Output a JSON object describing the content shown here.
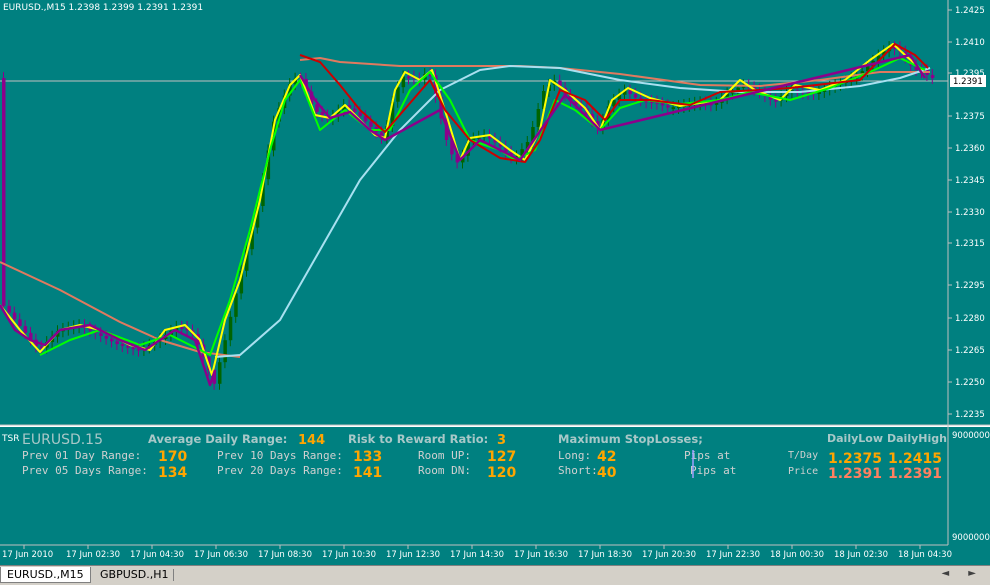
{
  "window": {
    "symbol_header": "EURUSD.,M15  1.2398 1.2399 1.2391 1.2391"
  },
  "colors": {
    "background": "#008080",
    "bull_candle": "#006400",
    "bear_candle": "#8b008b",
    "ma_yellow": "#ffff00",
    "ma_green": "#00ff00",
    "ma_red": "#cc0000",
    "ma_salmon": "#e07a5f",
    "ma_lightblue": "#a8e0f0",
    "value_orange": "#ffa500",
    "value_salmon": "#ff8060",
    "label_gray": "#c0c0c0"
  },
  "price_axis": {
    "labels": [
      "1.2425",
      "1.2410",
      "1.2395",
      "1.2391",
      "1.2375",
      "1.2360",
      "1.2345",
      "1.2330",
      "1.2315",
      "1.2295",
      "1.2280",
      "1.2265",
      "1.2250",
      "1.2235"
    ],
    "current_price": "1.2391"
  },
  "indicator_axis": {
    "top": "9000000",
    "bottom": "9000000"
  },
  "time_axis": {
    "labels": [
      "17 Jun 2010",
      "17 Jun 02:30",
      "17 Jun 04:30",
      "17 Jun 06:30",
      "17 Jun 08:30",
      "17 Jun 10:30",
      "17 Jun 12:30",
      "17 Jun 14:30",
      "17 Jun 16:30",
      "17 Jun 18:30",
      "17 Jun 20:30",
      "17 Jun 22:30",
      "18 Jun 00:30",
      "18 Jun 02:30",
      "18 Jun 04:30"
    ]
  },
  "panel": {
    "tag": "TSR",
    "symbol": "EURUSD.15",
    "adr_label": "Average Daily Range:",
    "adr_value": "144",
    "rr_label": "Risk to Reward Ratio:",
    "rr_value": "3",
    "msl_label": "Maximum StopLosses;",
    "dailylow_label": "DailyLow",
    "dailyhigh_label": "DailyHigh",
    "prev01_label": "Prev 01 Day Range:",
    "prev01_value": "170",
    "prev05_label": "Prev 05 Days Range:",
    "prev05_value": "134",
    "prev10_label": "Prev 10 Days Range:",
    "prev10_value": "133",
    "prev20_label": "Prev 20 Days Range:",
    "prev20_value": "141",
    "roomup_label": "Room UP:",
    "roomup_value": "127",
    "roomdn_label": "Room DN:",
    "roomdn_value": "120",
    "long_label": "Long:",
    "long_value": "42",
    "short_label": "Short:",
    "short_value": "40",
    "pips_at_1": "Pips at",
    "pips_at_2": "Pips at",
    "tday_label": "T/Day",
    "tday_low": "1.2375",
    "tday_high": "1.2415",
    "price_label": "Price",
    "price_low": "1.2391",
    "price_high": "1.2391"
  },
  "tabs": [
    {
      "label": "EURUSD.,M15",
      "active": true
    },
    {
      "label": "GBPUSD.,H1",
      "active": false
    }
  ],
  "tab_arrows": "◄ ►",
  "chart_data": {
    "type": "line",
    "note_series": [
      {
        "name": "",
        "x": [
          "17 Jun 2010",
          "17 Jun 02:30",
          "17 Jun 04:30",
          "17 Jun 06:30",
          "17 Jun 08:30",
          "17 Jun 10:30",
          "17 Jun 12:30",
          "17 Jun 14:30",
          "17 Jun 16:30",
          "17 Jun 18:30",
          "17 Jun 20:30",
          "17 Jun 22:30",
          "18 Jun 00:30",
          "18 Jun 02:30",
          "18 Jun 04:30"
        ],
        "close": [
          1.2288,
          1.2272,
          1.2276,
          1.2262,
          1.238,
          1.2372,
          1.2395,
          1.2355,
          1.238,
          1.238,
          1.238,
          1.2384,
          1.2384,
          1.24,
          1.2391
        ]
      }
    ],
    "ylim": [
      1.223,
      1.243
    ]
  }
}
